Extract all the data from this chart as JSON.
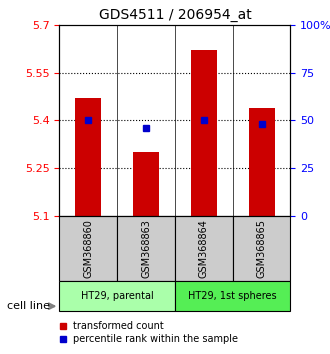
{
  "title": "GDS4511 / 206954_at",
  "samples": [
    "GSM368860",
    "GSM368863",
    "GSM368864",
    "GSM368865"
  ],
  "bar_bottoms": [
    5.1,
    5.1,
    5.1,
    5.1
  ],
  "bar_tops": [
    5.47,
    5.3,
    5.62,
    5.44
  ],
  "percentile_values": [
    5.4,
    5.375,
    5.4,
    5.39
  ],
  "percentile_ranks": [
    50,
    46,
    50,
    49
  ],
  "ylim_left": [
    5.1,
    5.7
  ],
  "yticks_left": [
    5.1,
    5.25,
    5.4,
    5.55,
    5.7
  ],
  "yticks_right": [
    0,
    25,
    50,
    75,
    100
  ],
  "bar_color": "#cc0000",
  "percentile_color": "#0000cc",
  "grid_color": "#000000",
  "cell_line_groups": [
    {
      "label": "HT29, parental",
      "indices": [
        0,
        1
      ],
      "color": "#aaffaa"
    },
    {
      "label": "HT29, 1st spheres",
      "indices": [
        2,
        3
      ],
      "color": "#55ee55"
    }
  ],
  "sample_box_color": "#cccccc",
  "legend_items": [
    {
      "label": "transformed count",
      "color": "#cc0000",
      "marker": "s"
    },
    {
      "label": "percentile rank within the sample",
      "color": "#0000cc",
      "marker": "s"
    }
  ],
  "cell_line_label": "cell line",
  "arrow_color": "#555555"
}
